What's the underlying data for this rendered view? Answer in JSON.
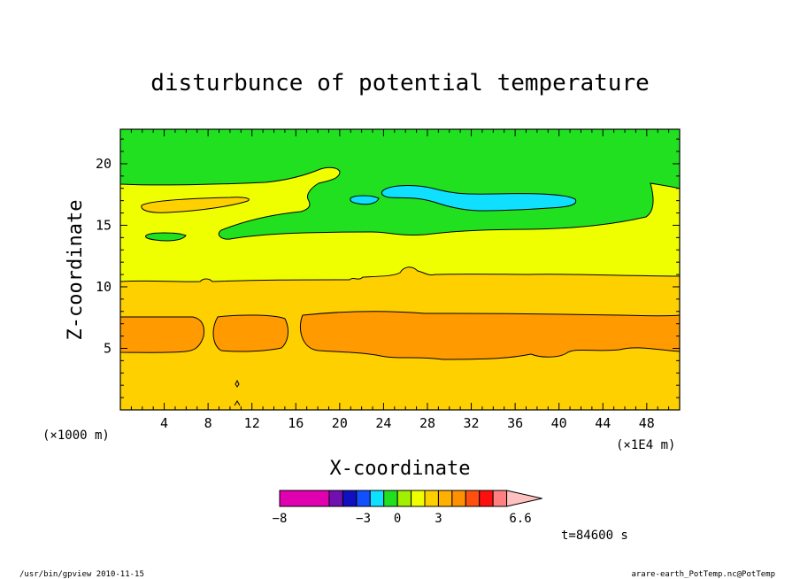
{
  "chart_data": {
    "type": "contour",
    "title": "disturbunce of potential temperature",
    "xlabel": "X-coordinate",
    "ylabel": "Z-coordinate",
    "x_unit_left": "(×1000 m)",
    "x_unit_right": "(×1E4 m)",
    "xlim": [
      0,
      51
    ],
    "ylim": [
      0,
      22.8
    ],
    "x_ticks": [
      4,
      8,
      12,
      16,
      20,
      24,
      28,
      32,
      36,
      40,
      44,
      48
    ],
    "y_ticks": [
      5,
      10,
      15,
      20
    ],
    "levels_colorbar": {
      "labels": [
        "−8",
        "−3",
        "0",
        "3",
        "6.6"
      ],
      "colors": [
        "#e000b0",
        "#e000b0",
        "#7010b0",
        "#1010c0",
        "#1050ff",
        "#10e0ff",
        "#20e020",
        "#a0f000",
        "#f0ff00",
        "#ffd000",
        "#ffb000",
        "#ff9000",
        "#ff5010",
        "#ff1010",
        "#ff8080",
        "#ffc0c0"
      ]
    },
    "bands": [
      {
        "level": "0 to 1",
        "color": "#ffd000",
        "z_range": [
          0,
          10.5
        ]
      },
      {
        "level": "1 to 2",
        "color": "#ff9a00",
        "z_range": [
          4.5,
          7.7
        ]
      },
      {
        "level": "-1 to 0",
        "color": "#f0ff00",
        "z_range": [
          10.5,
          18
        ]
      },
      {
        "level": "-2 to -1",
        "color": "#20e020",
        "z_range": [
          18,
          22.8
        ]
      },
      {
        "level": "-3 to -2",
        "color": "#10e0ff",
        "z_range": [
          16,
          17.8
        ]
      }
    ],
    "time_label": "t=84600 s"
  },
  "footer": {
    "left": "/usr/bin/gpview  2010-11-15",
    "right": "arare-earth_PotTemp.nc@PotTemp"
  }
}
